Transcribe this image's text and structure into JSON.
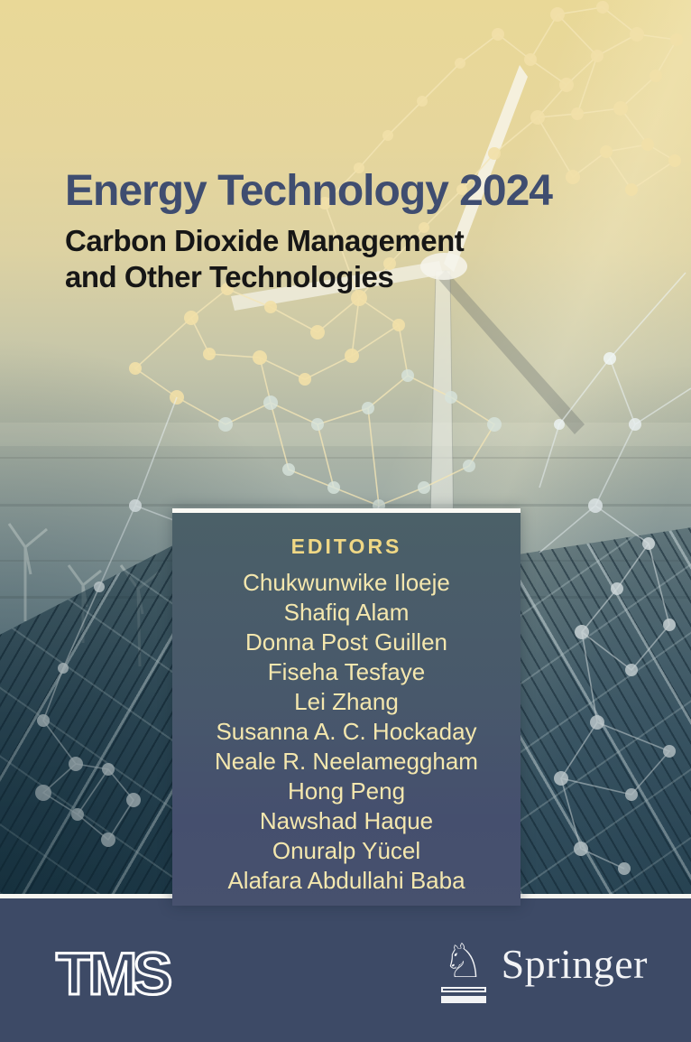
{
  "cover": {
    "title": "Energy Technology 2024",
    "subtitle": [
      "Carbon Dioxide Management",
      "and Other Technologies"
    ],
    "editors_label": "EDITORS",
    "editors": [
      "Chukwunwike Iloeje",
      "Shafiq Alam",
      "Donna Post Guillen",
      "Fiseha Tesfaye",
      "Lei Zhang",
      "Susanna A. C. Hockaday",
      "Neale R. Neelameggham",
      "Hong Peng",
      "Nawshad Haque",
      "Onuralp Yücel",
      "Alafara Abdullahi Baba"
    ],
    "footer": {
      "society": "TMS",
      "publisher": "Springer",
      "publisher_mark": "♘"
    },
    "colors": {
      "title": "#3f4d70",
      "subtitle": "#161616",
      "editors_label": "#f0d885",
      "editor_names": "#f4e7ae",
      "box_top": "#4b6068",
      "box_bottom": "#454f6e",
      "bottom_bar": "#3d4a66",
      "bg_top": "#e9d897",
      "bg_bottom": "#4a6a7c"
    }
  }
}
